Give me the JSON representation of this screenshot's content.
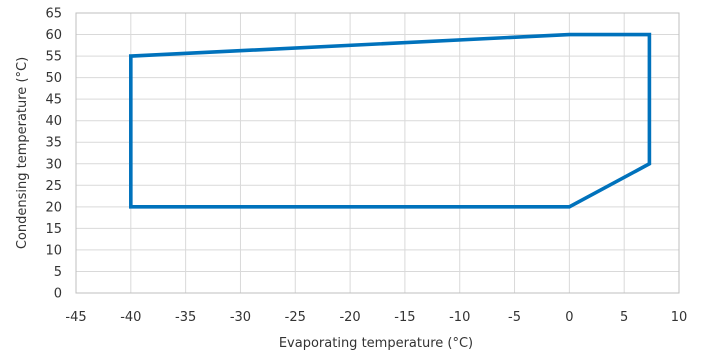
{
  "chart_data": {
    "type": "line",
    "title": "",
    "xlabel": "Evaporating temperature (°C)",
    "ylabel": "Condensing temperature (°C)",
    "xlim": [
      -45,
      10
    ],
    "ylim": [
      0,
      65
    ],
    "x_ticks": [
      -45,
      -40,
      -35,
      -30,
      -25,
      -20,
      -15,
      -10,
      -5,
      0,
      5,
      10
    ],
    "y_ticks": [
      0,
      5,
      10,
      15,
      20,
      25,
      30,
      35,
      40,
      45,
      50,
      55,
      60,
      65
    ],
    "grid": true,
    "series": [
      {
        "color": "#0072bc",
        "points": [
          {
            "x": -40,
            "y": 55
          },
          {
            "x": 0,
            "y": 60
          },
          {
            "x": 7.3,
            "y": 60
          },
          {
            "x": 7.3,
            "y": 30
          },
          {
            "x": 0,
            "y": 20
          },
          {
            "x": -40,
            "y": 20
          },
          {
            "x": -40,
            "y": 55
          }
        ]
      }
    ]
  }
}
